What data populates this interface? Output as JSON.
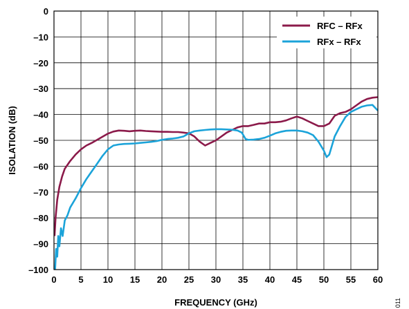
{
  "chart_data": {
    "type": "line",
    "title": "",
    "xlabel": "FREQUENCY (GHz)",
    "ylabel": "ISOLATION (dB)",
    "xlim": [
      0,
      60
    ],
    "ylim": [
      -100,
      0
    ],
    "xticks": [
      0,
      5,
      10,
      15,
      20,
      25,
      30,
      35,
      40,
      45,
      50,
      55,
      60
    ],
    "yticks": [
      0,
      -10,
      -20,
      -30,
      -40,
      -50,
      -60,
      -70,
      -80,
      -90,
      -100
    ],
    "xtick_labels": [
      "0",
      "5",
      "10",
      "15",
      "20",
      "25",
      "30",
      "35",
      "40",
      "45",
      "50",
      "55",
      "60"
    ],
    "ytick_labels": [
      "0",
      "–10",
      "–20",
      "–30",
      "–40",
      "–50",
      "–60",
      "–70",
      "–80",
      "–90",
      "–100"
    ],
    "grid": true,
    "legend_position": "top-right",
    "series": [
      {
        "name": "RFC – RFx",
        "color": "#8b1a4a",
        "x": [
          0.1,
          0.3,
          0.6,
          1,
          1.5,
          2,
          3,
          4,
          5,
          6,
          7,
          8,
          9,
          10,
          11,
          12,
          13,
          14,
          15,
          16,
          17,
          18,
          19,
          20,
          21,
          22,
          23,
          24,
          25,
          26,
          27,
          28,
          29,
          30,
          31,
          32,
          33,
          34,
          35,
          36,
          37,
          38,
          39,
          40,
          41,
          42,
          43,
          44,
          45,
          46,
          47,
          48,
          49,
          50,
          51,
          52,
          53,
          54,
          55,
          56,
          57,
          58,
          59,
          60
        ],
        "values": [
          -87,
          -80,
          -73,
          -68,
          -64,
          -61,
          -58,
          -55.5,
          -53.5,
          -52,
          -51,
          -49.8,
          -48.6,
          -47.4,
          -46.6,
          -46.2,
          -46.3,
          -46.5,
          -46.3,
          -46.2,
          -46.4,
          -46.5,
          -46.6,
          -46.7,
          -46.7,
          -46.8,
          -46.8,
          -47,
          -47.3,
          -48.5,
          -50.5,
          -52,
          -51,
          -50,
          -48.5,
          -47,
          -46,
          -45,
          -44.5,
          -44.5,
          -44,
          -43.5,
          -43.5,
          -43,
          -43,
          -42.8,
          -42.3,
          -41.5,
          -40.8,
          -41.5,
          -42.5,
          -43.5,
          -44.5,
          -44.5,
          -43.5,
          -40.5,
          -39.5,
          -39,
          -38,
          -36.5,
          -35,
          -34,
          -33.5,
          -33.3
        ]
      },
      {
        "name": "RFx – RFx",
        "color": "#1ba3d9",
        "x": [
          0.2,
          0.4,
          0.6,
          0.8,
          1,
          1.3,
          1.6,
          2,
          2.5,
          3,
          4,
          5,
          6,
          7,
          8,
          9,
          10,
          11,
          12,
          13,
          14,
          15,
          16,
          17,
          18,
          19,
          20,
          21,
          22,
          23,
          24,
          25,
          26,
          27,
          28,
          29,
          30,
          31,
          32,
          33,
          34,
          34.8,
          35.5,
          36,
          37,
          38,
          39,
          40,
          41,
          42,
          43,
          44,
          45,
          46,
          47,
          48,
          49,
          50,
          50.5,
          51,
          51.5,
          52,
          53,
          54,
          55,
          56,
          57,
          58,
          59,
          60
        ],
        "values": [
          -100,
          -92,
          -95,
          -87,
          -91,
          -84,
          -87,
          -81,
          -79,
          -76,
          -72.5,
          -68.5,
          -65,
          -62,
          -59,
          -56,
          -53.5,
          -52,
          -51.6,
          -51.4,
          -51.3,
          -51.2,
          -51,
          -50.8,
          -50.6,
          -50.3,
          -49.8,
          -49.5,
          -49.3,
          -49,
          -48.5,
          -47.3,
          -46.5,
          -46.2,
          -46,
          -45.8,
          -45.7,
          -45.7,
          -45.8,
          -45.9,
          -46.2,
          -47,
          -49.5,
          -49.8,
          -49.7,
          -49.5,
          -49,
          -48.2,
          -47.3,
          -46.7,
          -46.3,
          -46.2,
          -46.2,
          -46.5,
          -47,
          -48,
          -50.5,
          -54,
          -56.5,
          -55.5,
          -52,
          -48.5,
          -44.5,
          -41,
          -39,
          -38,
          -37,
          -36.5,
          -36.3,
          -38.5
        ]
      }
    ],
    "figure_id": "011"
  }
}
